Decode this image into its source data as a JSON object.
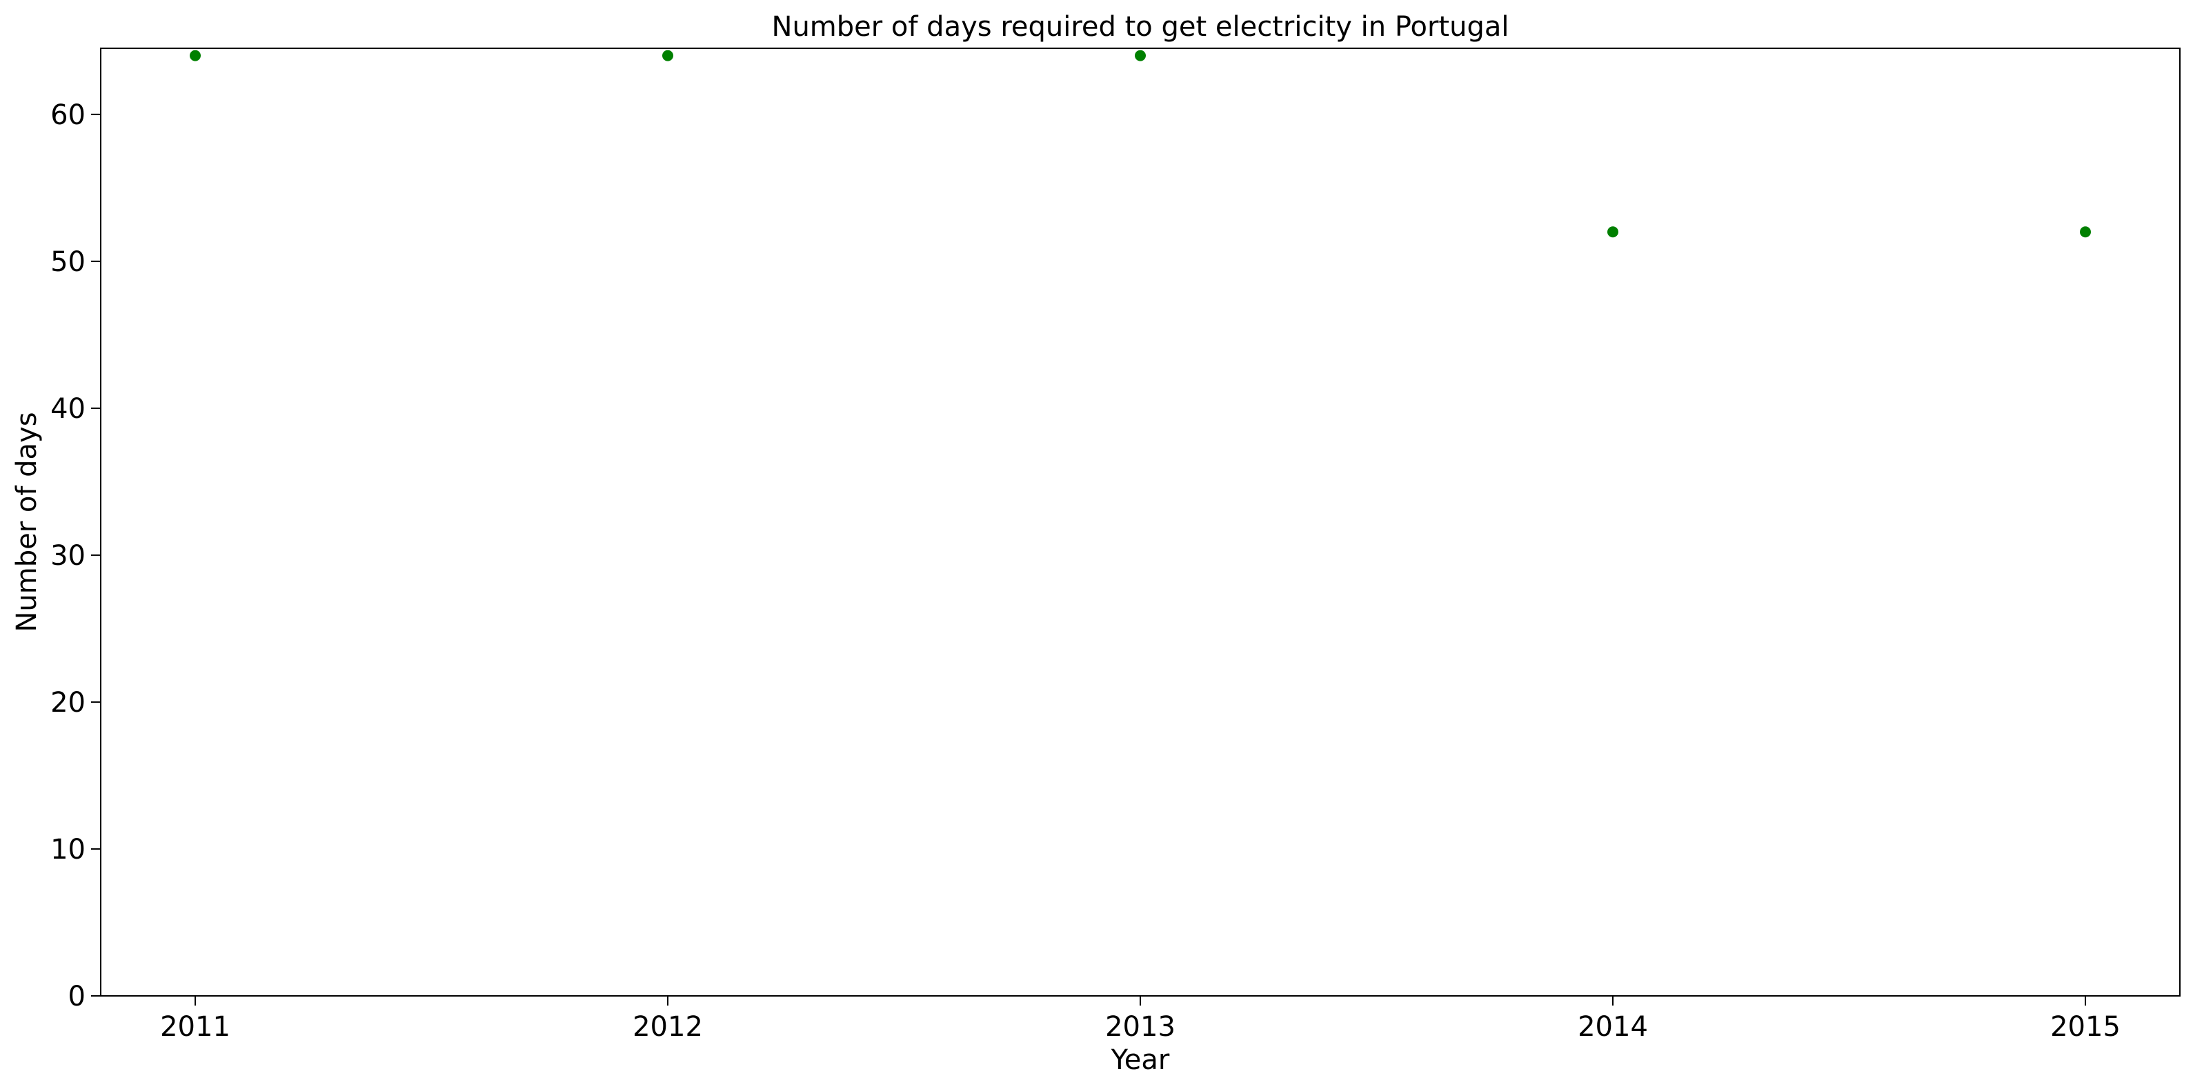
{
  "chart_data": {
    "type": "scatter",
    "title": "Number of days required to get electricity in Portugal",
    "xlabel": "Year",
    "ylabel": "Number of days",
    "x": [
      2011,
      2012,
      2013,
      2014,
      2015
    ],
    "series": [
      {
        "values": [
          64,
          64,
          64,
          52,
          52
        ],
        "color": "#008000"
      }
    ],
    "xlim": [
      2010.8,
      2015.2
    ],
    "ylim": [
      0,
      64.5
    ],
    "xticks": [
      "2011",
      "2012",
      "2013",
      "2014",
      "2015"
    ],
    "yticks": [
      "0",
      "10",
      "20",
      "30",
      "40",
      "50",
      "60"
    ],
    "grid": false,
    "legend": "none"
  }
}
